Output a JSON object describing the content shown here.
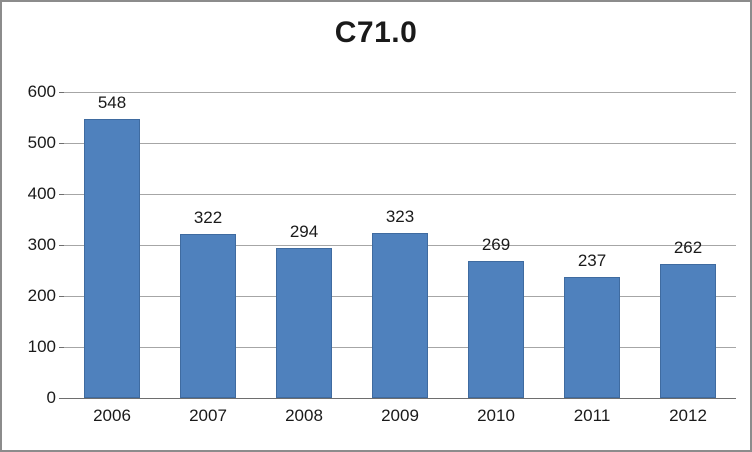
{
  "chart_data": {
    "type": "bar",
    "title": "C71.0",
    "categories": [
      "2006",
      "2007",
      "2008",
      "2009",
      "2010",
      "2011",
      "2012"
    ],
    "values": [
      548,
      322,
      294,
      323,
      269,
      237,
      262
    ],
    "xlabel": "",
    "ylabel": "",
    "ylim": [
      0,
      600
    ],
    "ytick_step": 100,
    "ytick_labels": [
      "0",
      "100",
      "200",
      "300",
      "400",
      "500",
      "600"
    ],
    "grid": "horizontal",
    "legend": "none",
    "bar_color": "#4f81bd",
    "gridline_color": "#a6a6a6",
    "background_color": "#ffffff"
  }
}
